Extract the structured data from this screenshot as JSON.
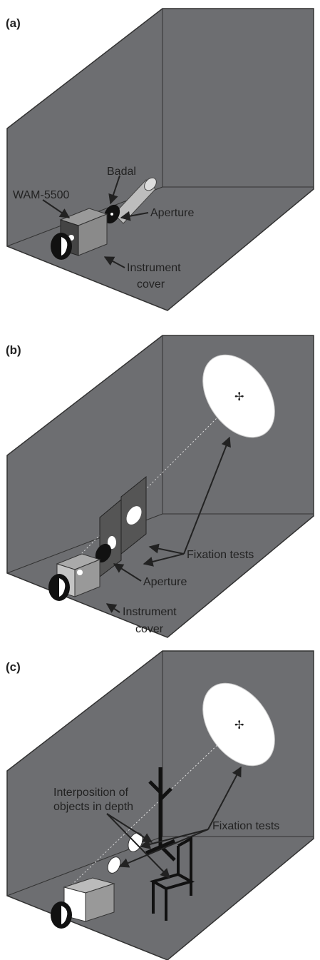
{
  "panels": [
    {
      "label": "(a)",
      "annotations": [
        "Badal",
        "WAM-5500",
        "Aperture",
        "Instrument",
        "cover"
      ]
    },
    {
      "label": "(b)",
      "annotations": [
        "Fixation tests",
        "Aperture",
        "Instrument",
        "cover"
      ]
    },
    {
      "label": "(c)",
      "annotations": [
        "Interposition of",
        "objects in depth",
        "Fixation tests"
      ]
    }
  ]
}
